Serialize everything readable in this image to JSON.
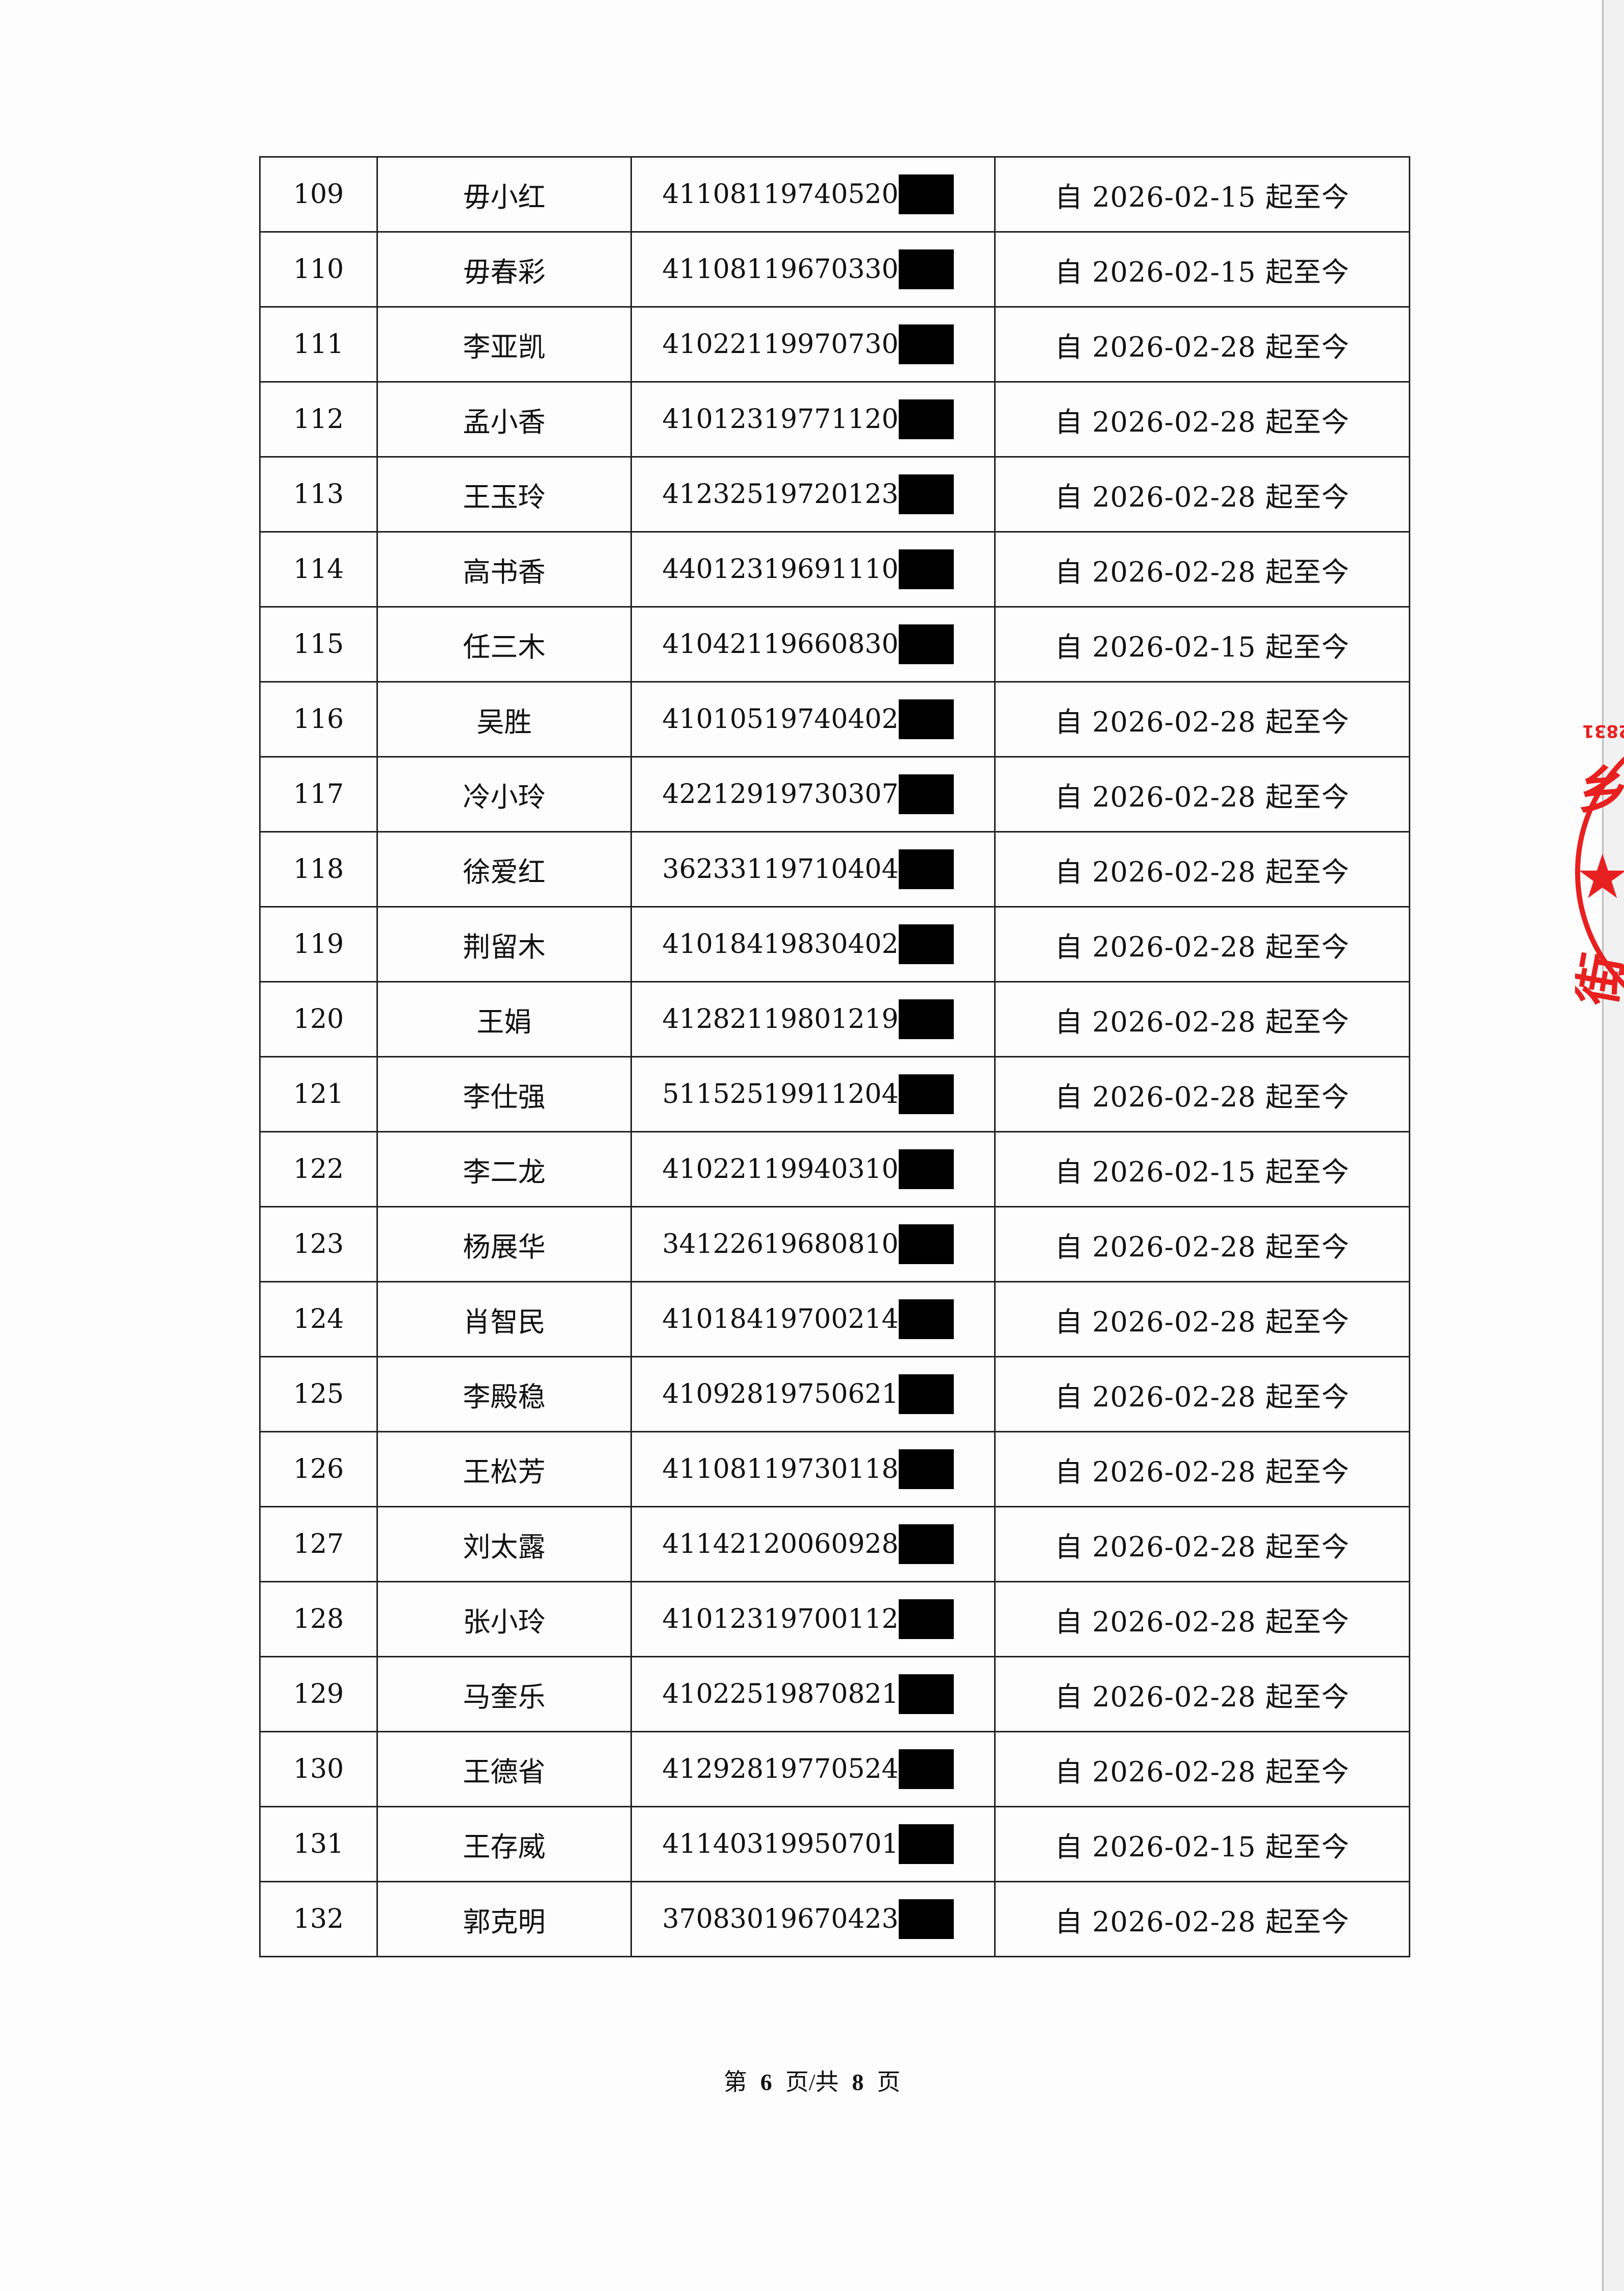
{
  "table": {
    "rows": [
      {
        "no": "109",
        "name": "毋小红",
        "id_prefix": "41108119740520",
        "period": "自 2026-02-15 起至今"
      },
      {
        "no": "110",
        "name": "毋春彩",
        "id_prefix": "41108119670330",
        "period": "自 2026-02-15 起至今"
      },
      {
        "no": "111",
        "name": "李亚凯",
        "id_prefix": "41022119970730",
        "period": "自 2026-02-28 起至今"
      },
      {
        "no": "112",
        "name": "孟小香",
        "id_prefix": "41012319771120",
        "period": "自 2026-02-28 起至今"
      },
      {
        "no": "113",
        "name": "王玉玲",
        "id_prefix": "41232519720123",
        "period": "自 2026-02-28 起至今"
      },
      {
        "no": "114",
        "name": "高书香",
        "id_prefix": "44012319691110",
        "period": "自 2026-02-28 起至今"
      },
      {
        "no": "115",
        "name": "任三木",
        "id_prefix": "41042119660830",
        "period": "自 2026-02-15 起至今"
      },
      {
        "no": "116",
        "name": "吴胜",
        "id_prefix": "41010519740402",
        "period": "自 2026-02-28 起至今"
      },
      {
        "no": "117",
        "name": "冷小玲",
        "id_prefix": "42212919730307",
        "period": "自 2026-02-28 起至今"
      },
      {
        "no": "118",
        "name": "徐爱红",
        "id_prefix": "36233119710404",
        "period": "自 2026-02-28 起至今"
      },
      {
        "no": "119",
        "name": "荆留木",
        "id_prefix": "41018419830402",
        "period": "自 2026-02-28 起至今"
      },
      {
        "no": "120",
        "name": "王娟",
        "id_prefix": "41282119801219",
        "period": "自 2026-02-28 起至今"
      },
      {
        "no": "121",
        "name": "李仕强",
        "id_prefix": "51152519911204",
        "period": "自 2026-02-28 起至今"
      },
      {
        "no": "122",
        "name": "李二龙",
        "id_prefix": "41022119940310",
        "period": "自 2026-02-15 起至今"
      },
      {
        "no": "123",
        "name": "杨展华",
        "id_prefix": "34122619680810",
        "period": "自 2026-02-28 起至今"
      },
      {
        "no": "124",
        "name": "肖智民",
        "id_prefix": "41018419700214",
        "period": "自 2026-02-28 起至今"
      },
      {
        "no": "125",
        "name": "李殿稳",
        "id_prefix": "41092819750621",
        "period": "自 2026-02-28 起至今"
      },
      {
        "no": "126",
        "name": "王松芳",
        "id_prefix": "41108119730118",
        "period": "自 2026-02-28 起至今"
      },
      {
        "no": "127",
        "name": "刘太露",
        "id_prefix": "41142120060928",
        "period": "自 2026-02-28 起至今"
      },
      {
        "no": "128",
        "name": "张小玲",
        "id_prefix": "41012319700112",
        "period": "自 2026-02-28 起至今"
      },
      {
        "no": "129",
        "name": "马奎乐",
        "id_prefix": "41022519870821",
        "period": "自 2026-02-28 起至今"
      },
      {
        "no": "130",
        "name": "王德省",
        "id_prefix": "41292819770524",
        "period": "自 2026-02-28 起至今"
      },
      {
        "no": "131",
        "name": "王存威",
        "id_prefix": "41140319950701",
        "period": "自 2026-02-15 起至今"
      },
      {
        "no": "132",
        "name": "郭克明",
        "id_prefix": "37083019670423",
        "period": "自 2026-02-28 起至今"
      }
    ]
  },
  "footer": {
    "prefix": "第",
    "current": "6",
    "middle": "页/共",
    "total": "8",
    "suffix": "页"
  },
  "stamp": {
    "color": "#e8201f",
    "visible_fragment": "2831 田 乡 街"
  },
  "colors": {
    "redaction": "#000000",
    "border": "#222222"
  }
}
